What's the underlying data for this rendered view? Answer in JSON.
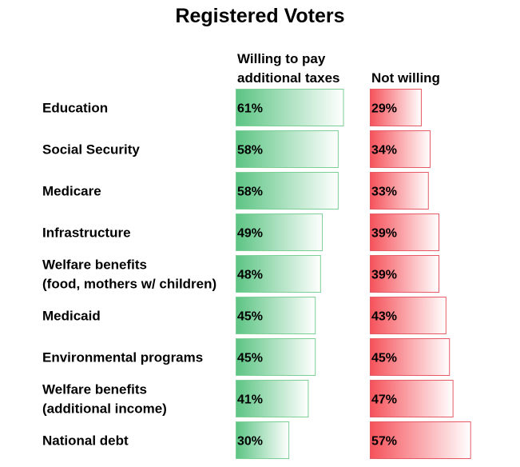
{
  "chart_data": {
    "type": "bar",
    "title": "Registered Voters",
    "categories": [
      [
        "Education"
      ],
      [
        "Social Security"
      ],
      [
        "Medicare"
      ],
      [
        "Infrastructure"
      ],
      [
        "Welfare benefits",
        "(food, mothers w/ children)"
      ],
      [
        "Medicaid"
      ],
      [
        "Environmental programs"
      ],
      [
        "Welfare benefits",
        "(additional income)"
      ],
      [
        "National debt"
      ]
    ],
    "series": [
      {
        "name": "Willing to pay additional taxes",
        "values": [
          61,
          58,
          58,
          49,
          48,
          45,
          45,
          41,
          30
        ],
        "labels": [
          "61%",
          "58%",
          "58%",
          "49%",
          "48%",
          "45%",
          "45%",
          "41%",
          "30%"
        ],
        "color": "#5cc483",
        "border": "#7ccf95"
      },
      {
        "name": "Not willing",
        "values": [
          29,
          34,
          33,
          39,
          39,
          43,
          45,
          47,
          57
        ],
        "labels": [
          "29%",
          "34%",
          "33%",
          "39%",
          "39%",
          "43%",
          "45%",
          "47%",
          "57%"
        ],
        "color": "#f5525a",
        "border": "#e55a64"
      }
    ],
    "header_lines": {
      "willing": [
        "Willing to pay",
        "additional taxes"
      ],
      "not_willing": [
        "Not willing"
      ]
    },
    "grid": false,
    "legend": "none"
  }
}
